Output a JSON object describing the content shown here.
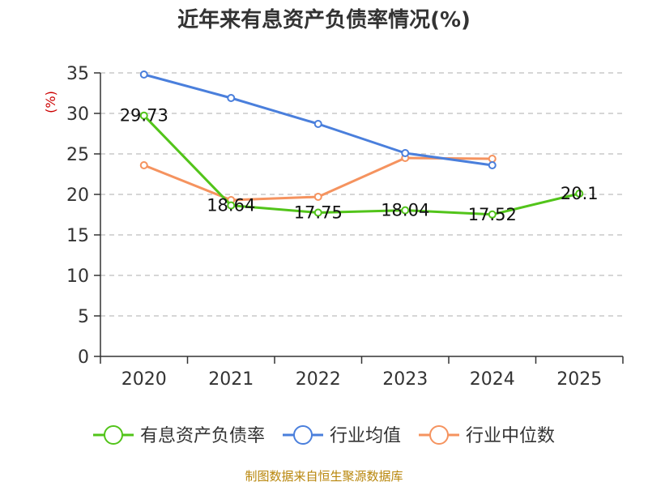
{
  "chart_data": {
    "type": "line",
    "title": "近年来有息资产负债率情况(%)",
    "ylabel": "(%)",
    "xlabel": "",
    "categories": [
      "2020",
      "2021",
      "2022",
      "2023",
      "2024",
      "2025"
    ],
    "ylim": [
      0,
      35
    ],
    "yticks": [
      0,
      5,
      10,
      15,
      20,
      25,
      30,
      35
    ],
    "grid": true,
    "legend_position": "bottom",
    "series": [
      {
        "name": "有息资产负债率",
        "color": "#52c41a",
        "values": [
          29.73,
          18.64,
          17.75,
          18.04,
          17.52,
          20.1
        ],
        "labels": [
          "29.73",
          "18.64",
          "17.75",
          "18.04",
          "17.52",
          "20.1"
        ]
      },
      {
        "name": "行业均值",
        "color": "#4a7fdc",
        "values": [
          34.8,
          31.9,
          28.7,
          25.1,
          23.6,
          null
        ]
      },
      {
        "name": "行业中位数",
        "color": "#f5935f",
        "values": [
          23.6,
          19.3,
          19.7,
          24.5,
          24.4,
          null
        ]
      }
    ],
    "source": "制图数据来自恒生聚源数据库"
  }
}
